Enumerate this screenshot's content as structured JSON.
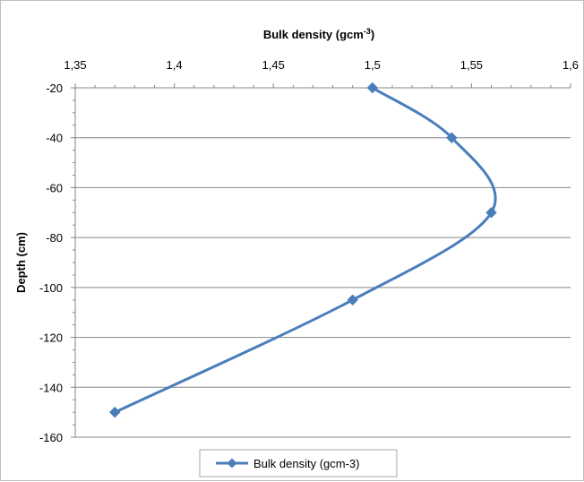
{
  "chart_data": {
    "type": "line",
    "xlabel": "Bulk density (gcm",
    "xlabel_sup": "-3",
    "xlabel_end": ")",
    "ylabel": "Depth (cm)",
    "x_axis_position": "top",
    "xlim": [
      1.35,
      1.6
    ],
    "ylim": [
      -160,
      -20
    ],
    "x_ticks": [
      "1,35",
      "1,4",
      "1,45",
      "1,5",
      "1,55",
      "1,6"
    ],
    "y_ticks": [
      "-20",
      "-40",
      "-60",
      "-80",
      "-100",
      "-120",
      "-140",
      "-160"
    ],
    "grid": "horizontal",
    "legend_position": "bottom",
    "series": [
      {
        "name": "Bulk density (gcm-3)",
        "color": "#4a7ebb",
        "marker": "diamond",
        "smooth": true,
        "points": [
          {
            "x": 1.5,
            "y": -20
          },
          {
            "x": 1.54,
            "y": -40
          },
          {
            "x": 1.56,
            "y": -70
          },
          {
            "x": 1.49,
            "y": -105
          },
          {
            "x": 1.37,
            "y": -150
          }
        ]
      }
    ]
  }
}
